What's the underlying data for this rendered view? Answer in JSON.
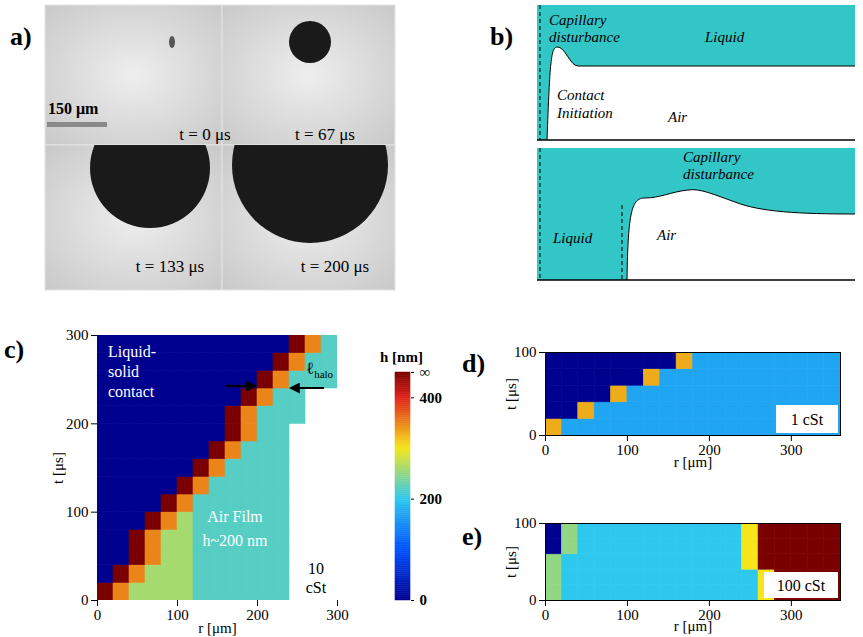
{
  "panel_a": {
    "letter": "a)",
    "scale_bar": "150 μm",
    "frames": [
      "t = 0 μs",
      "t = 67 μs",
      "t = 133 μs",
      "t = 200 μs"
    ]
  },
  "panel_b": {
    "letter": "b)",
    "top": {
      "disturbance": "Capillary disturbance",
      "liquid": "Liquid",
      "contact": "Contact Initiation",
      "air": "Air"
    },
    "bottom": {
      "disturbance": "Capillary disturbance",
      "liquid": "Liquid",
      "air": "Air"
    }
  },
  "chart_data": [
    {
      "type": "heatmap",
      "letter": "c)",
      "label": "10 cSt",
      "x_label": "r [μm]",
      "y_label": "t [μs]",
      "xlim": [
        0,
        300
      ],
      "xticks": [
        0,
        100,
        200,
        300
      ],
      "ylim": [
        0,
        300
      ],
      "yticks": [
        0,
        100,
        200,
        300
      ],
      "annotations": {
        "contact": "Liquid-solid contact",
        "film": "Air Film",
        "film_thickness": "h~200 nm",
        "halo": {
          "symbol": "ℓ",
          "subscript": "halo"
        }
      },
      "colorbar": {
        "label": "h [nm]",
        "range": [
          0,
          450
        ],
        "ticks": [
          0,
          200,
          400,
          {
            "value": 450,
            "label": "∞"
          }
        ]
      },
      "r_bins": [
        0,
        20,
        40,
        60,
        80,
        100,
        120,
        140,
        160,
        180,
        200,
        220,
        240,
        260,
        280,
        300
      ],
      "t_bins": [
        0,
        20,
        40,
        60,
        80,
        100,
        120,
        140,
        160,
        180,
        200,
        220,
        240,
        260,
        280,
        300
      ],
      "cells": [
        [
          450,
          350,
          260,
          260,
          260,
          260,
          220,
          220,
          220,
          220,
          220,
          220,
          null,
          null,
          null
        ],
        [
          0,
          450,
          350,
          260,
          260,
          260,
          220,
          220,
          220,
          220,
          220,
          220,
          null,
          null,
          null
        ],
        [
          0,
          0,
          450,
          350,
          260,
          260,
          220,
          220,
          220,
          220,
          220,
          220,
          null,
          null,
          null
        ],
        [
          0,
          0,
          450,
          350,
          260,
          260,
          220,
          220,
          220,
          220,
          220,
          220,
          null,
          null,
          null
        ],
        [
          0,
          0,
          0,
          450,
          350,
          260,
          220,
          220,
          220,
          220,
          220,
          220,
          null,
          null,
          null
        ],
        [
          0,
          0,
          0,
          0,
          450,
          350,
          220,
          220,
          220,
          220,
          220,
          220,
          null,
          null,
          null
        ],
        [
          0,
          0,
          0,
          0,
          0,
          450,
          350,
          220,
          220,
          220,
          220,
          220,
          null,
          null,
          null
        ],
        [
          0,
          0,
          0,
          0,
          0,
          0,
          450,
          350,
          220,
          220,
          220,
          220,
          null,
          null,
          null
        ],
        [
          0,
          0,
          0,
          0,
          0,
          0,
          0,
          450,
          350,
          220,
          220,
          220,
          null,
          null,
          null
        ],
        [
          0,
          0,
          0,
          0,
          0,
          0,
          0,
          0,
          450,
          350,
          220,
          220,
          null,
          null,
          null
        ],
        [
          0,
          0,
          0,
          0,
          0,
          0,
          0,
          0,
          450,
          350,
          220,
          220,
          220,
          null,
          null
        ],
        [
          0,
          0,
          0,
          0,
          0,
          0,
          0,
          0,
          0,
          450,
          350,
          220,
          220,
          null,
          null
        ],
        [
          0,
          0,
          0,
          0,
          0,
          0,
          0,
          0,
          0,
          0,
          450,
          350,
          220,
          220,
          220
        ],
        [
          0,
          0,
          0,
          0,
          0,
          0,
          0,
          0,
          0,
          0,
          0,
          450,
          350,
          220,
          220
        ],
        [
          0,
          0,
          0,
          0,
          0,
          0,
          0,
          0,
          0,
          0,
          0,
          0,
          450,
          350,
          220
        ]
      ]
    },
    {
      "type": "heatmap",
      "letter": "d)",
      "label": "1 cSt",
      "x_label": "r [μm]",
      "y_label": "t [μs]",
      "xlim": [
        0,
        360
      ],
      "xticks": [
        0,
        100,
        200,
        300
      ],
      "ylim": [
        0,
        100
      ],
      "yticks": [
        0,
        100
      ],
      "r_bins": [
        0,
        20,
        40,
        60,
        80,
        100,
        120,
        140,
        160,
        180,
        200,
        220,
        240,
        260,
        280,
        300,
        320,
        340,
        360
      ],
      "t_bins": [
        0,
        20,
        40,
        60,
        80,
        100
      ],
      "cells": [
        [
          330,
          170,
          170,
          170,
          170,
          170,
          170,
          170,
          170,
          170,
          170,
          170,
          170,
          170,
          170,
          170,
          170,
          170
        ],
        [
          0,
          0,
          330,
          170,
          170,
          170,
          170,
          170,
          170,
          170,
          170,
          170,
          170,
          170,
          170,
          170,
          170,
          170
        ],
        [
          0,
          0,
          0,
          0,
          330,
          170,
          170,
          170,
          170,
          170,
          170,
          170,
          170,
          170,
          170,
          170,
          170,
          170
        ],
        [
          0,
          0,
          0,
          0,
          0,
          0,
          330,
          170,
          170,
          170,
          170,
          170,
          170,
          170,
          170,
          170,
          170,
          170
        ],
        [
          0,
          0,
          0,
          0,
          0,
          0,
          0,
          0,
          330,
          170,
          170,
          170,
          170,
          170,
          170,
          170,
          170,
          170
        ]
      ]
    },
    {
      "type": "heatmap",
      "letter": "e)",
      "label": "100 cSt",
      "x_label": "r [μm]",
      "y_label": "t [μs]",
      "xlim": [
        0,
        360
      ],
      "xticks": [
        0,
        100,
        200,
        300
      ],
      "ylim": [
        0,
        100
      ],
      "yticks": [
        0,
        100
      ],
      "r_bins": [
        0,
        20,
        40,
        60,
        80,
        100,
        120,
        140,
        160,
        180,
        200,
        220,
        240,
        260,
        280,
        300,
        320,
        340,
        360
      ],
      "t_bins": [
        0,
        20,
        40,
        60,
        80,
        100
      ],
      "cells": [
        [
          250,
          200,
          200,
          200,
          200,
          200,
          200,
          200,
          200,
          200,
          200,
          200,
          200,
          300,
          450,
          450,
          450,
          450
        ],
        [
          250,
          200,
          200,
          200,
          200,
          200,
          200,
          200,
          200,
          200,
          200,
          200,
          200,
          300,
          450,
          450,
          450,
          450
        ],
        [
          250,
          200,
          200,
          200,
          200,
          200,
          200,
          200,
          200,
          200,
          200,
          200,
          300,
          450,
          450,
          450,
          450,
          450
        ],
        [
          0,
          250,
          200,
          200,
          200,
          200,
          200,
          200,
          200,
          200,
          200,
          200,
          300,
          450,
          450,
          450,
          450,
          450
        ],
        [
          0,
          250,
          200,
          200,
          200,
          200,
          200,
          200,
          200,
          200,
          200,
          200,
          300,
          450,
          450,
          450,
          450,
          450
        ]
      ]
    }
  ]
}
